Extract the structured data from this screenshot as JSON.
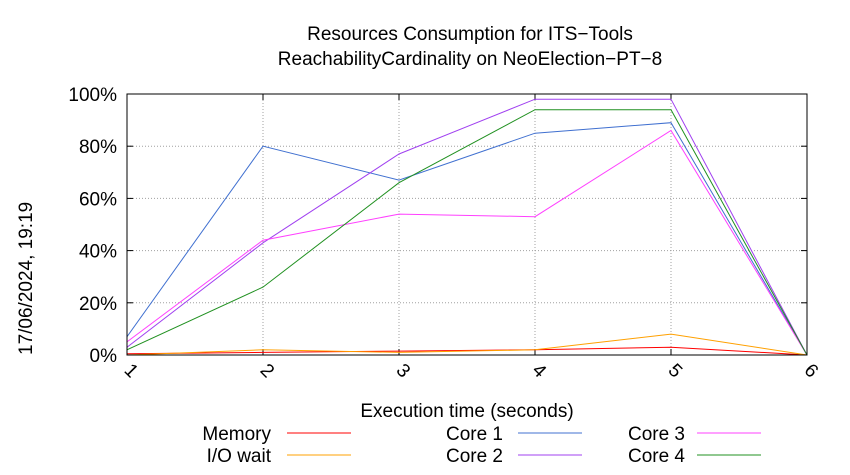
{
  "chart_data": {
    "type": "line",
    "title": "Resources Consumption for ITS−Tools",
    "subtitle": "ReachabilityCardinality on NeoElection−PT−8",
    "xlabel": "Execution time (seconds)",
    "ylabel": "",
    "side_label": "17/06/2024, 19:19",
    "x": [
      1,
      2,
      3,
      4,
      5,
      6
    ],
    "xlim": [
      1,
      6
    ],
    "ylim": [
      0,
      100
    ],
    "x_ticks": [
      "1",
      "2",
      "3",
      "4",
      "5",
      "6"
    ],
    "y_ticks": [
      "0%",
      "20%",
      "40%",
      "60%",
      "80%",
      "100%"
    ],
    "grid": true,
    "legend_position": "bottom",
    "series": [
      {
        "name": "Memory",
        "color": "#ff0000",
        "values": [
          0.5,
          1,
          1.5,
          2,
          3,
          0
        ]
      },
      {
        "name": "I/O wait",
        "color": "#ffa000",
        "values": [
          0,
          2,
          1,
          2,
          8,
          0
        ]
      },
      {
        "name": "Core 1",
        "color": "#4070d0",
        "values": [
          7,
          80,
          67,
          85,
          89,
          0
        ]
      },
      {
        "name": "Core 2",
        "color": "#a040f0",
        "values": [
          3,
          43,
          77,
          98,
          98,
          0
        ]
      },
      {
        "name": "Core 3",
        "color": "#ff40ff",
        "values": [
          5,
          44,
          54,
          53,
          86,
          0
        ]
      },
      {
        "name": "Core 4",
        "color": "#209020",
        "values": [
          2,
          26,
          66,
          94,
          94,
          0
        ]
      }
    ]
  }
}
